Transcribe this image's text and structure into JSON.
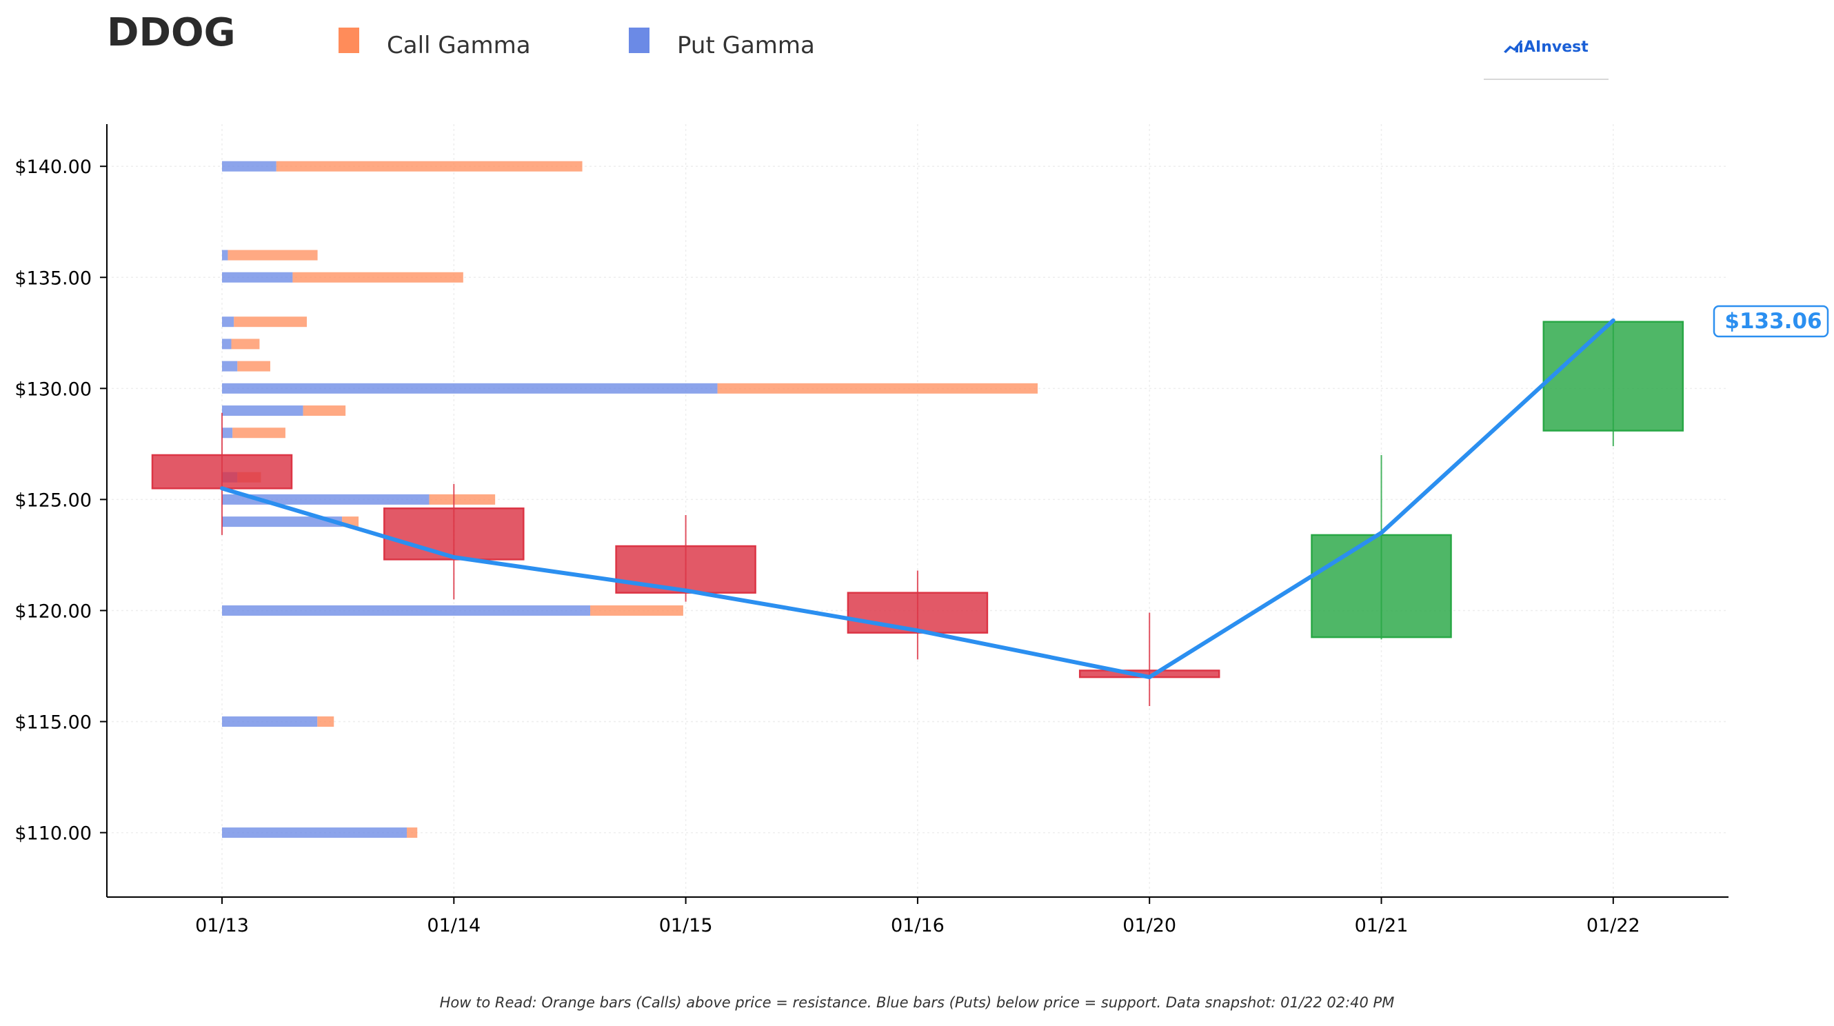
{
  "chart_data": {
    "type": "candlestick",
    "title": "DDOG",
    "legend": {
      "placement": "top",
      "items": [
        {
          "label": "Call Gamma",
          "color": "#ff8c5a"
        },
        {
          "label": "Put Gamma",
          "color": "#6b8ae6"
        }
      ]
    },
    "brand": "AInvest",
    "x_labels": [
      "01/13",
      "01/14",
      "01/15",
      "01/16",
      "01/20",
      "01/21",
      "01/22"
    ],
    "y_ticks": [
      110,
      115,
      120,
      125,
      130,
      135,
      140
    ],
    "y_tick_labels": [
      "$110.00",
      "$115.00",
      "$120.00",
      "$125.00",
      "$130.00",
      "$135.00",
      "$140.00"
    ],
    "ylim": [
      107.1,
      141.9
    ],
    "grid": true,
    "candles": [
      {
        "date": "01/13",
        "open": 127.0,
        "close": 125.5,
        "high": 128.9,
        "low": 123.4
      },
      {
        "date": "01/14",
        "open": 124.6,
        "close": 122.3,
        "high": 125.7,
        "low": 120.5
      },
      {
        "date": "01/15",
        "open": 122.9,
        "close": 120.8,
        "high": 124.3,
        "low": 120.4
      },
      {
        "date": "01/16",
        "open": 120.8,
        "close": 119.0,
        "high": 121.8,
        "low": 117.8
      },
      {
        "date": "01/20",
        "open": 117.3,
        "close": 117.0,
        "high": 119.9,
        "low": 115.7
      },
      {
        "date": "01/21",
        "open": 118.8,
        "close": 123.4,
        "high": 127.0,
        "low": 118.7
      },
      {
        "date": "01/22",
        "open": 128.1,
        "close": 133.0,
        "high": 133.1,
        "low": 127.4
      }
    ],
    "close_line": [
      125.5,
      122.4,
      120.9,
      119.1,
      117.0,
      123.5,
      133.06
    ],
    "current_price_label": "$133.06",
    "gamma_bars": [
      {
        "strike": 140.0,
        "put": 0.233,
        "call": 1.313
      },
      {
        "strike": 136.0,
        "put": 0.025,
        "call": 0.385
      },
      {
        "strike": 135.0,
        "put": 0.303,
        "call": 0.732
      },
      {
        "strike": 133.0,
        "put": 0.051,
        "call": 0.313
      },
      {
        "strike": 132.0,
        "put": 0.04,
        "call": 0.121
      },
      {
        "strike": 131.0,
        "put": 0.066,
        "call": 0.141
      },
      {
        "strike": 130.0,
        "put": 2.126,
        "call": 1.374
      },
      {
        "strike": 129.0,
        "put": 0.348,
        "call": 0.182
      },
      {
        "strike": 128.0,
        "put": 0.045,
        "call": 0.227
      },
      {
        "strike": 126.0,
        "put": 0.066,
        "call": 0.101
      },
      {
        "strike": 125.0,
        "put": 0.889,
        "call": 0.283
      },
      {
        "strike": 124.0,
        "put": 0.515,
        "call": 0.071
      },
      {
        "strike": 120.0,
        "put": 1.58,
        "call": 0.399
      },
      {
        "strike": 115.0,
        "put": 0.409,
        "call": 0.071
      },
      {
        "strike": 110.0,
        "put": 0.793,
        "call": 0.045
      }
    ],
    "colors": {
      "call": "#ff8c5a",
      "put": "#6b8ae6",
      "down_candle": "#dc3545",
      "up_candle": "#28a745",
      "close_line": "#2b8ff0",
      "brand": "#1a5fd6"
    },
    "footnote": "How to Read: Orange bars (Calls) above price = resistance. Blue bars (Puts) below price = support. Data snapshot: 01/22 02:40 PM"
  }
}
